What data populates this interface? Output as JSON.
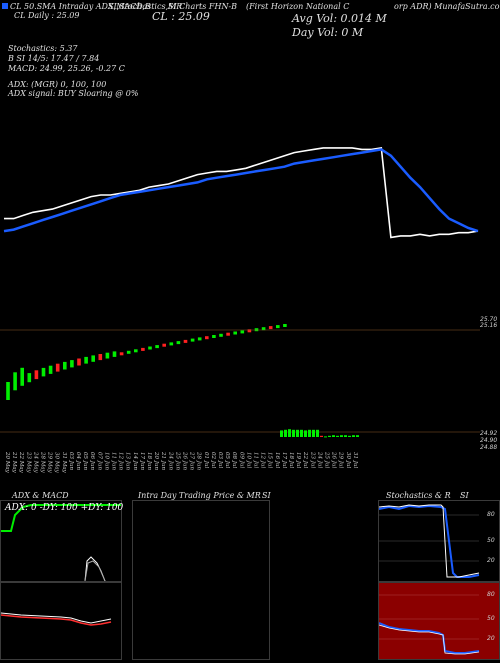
{
  "header": {
    "symbol_line": "CL 50.SMA Intraday ADX,MACD,B",
    "ticker_line": "SI,Stochastics,MR",
    "ticker_line2": "SI Charts FHN-B",
    "company_line": "(First Horizon  National C",
    "company_line2": "orp ADR) MunafaSutra.com",
    "close_label": "CL : 25.09",
    "sma_label": "CL  Daily : 25.09",
    "avg_vol": "Avg Vol: 0.014  M",
    "day_vol": "Day Vol: 0  M"
  },
  "indicators": {
    "stoch_label": "Stochastics: 5.37",
    "stoch_values": "B                SI 14/5: 17.47 / 7.84",
    "macd_label": "MACD: 24.99,  25.26,  -0.27  C",
    "adx_label": "ADX:                          (MGR) 0,  100,  100",
    "adx_signal": "ADX  signal:                        BUY Sloaring @ 0%"
  },
  "price_levels": {
    "upper_right": "25.70",
    "upper_right2": "25.16",
    "lower_right": "24.92",
    "lower_right2": "24.90",
    "lower_right3": "24.88"
  },
  "dates": [
    "20 May",
    "21 May",
    "22 May",
    "23 May",
    "24 May",
    "28 May",
    "29 May",
    "30 May",
    "31 May",
    "03 Jun",
    "04 Jun",
    "05 Jun",
    "06 Jun",
    "07 Jun",
    "10 Jun",
    "11 Jun",
    "12 Jun",
    "13 Jun",
    "14 Jun",
    "17 Jun",
    "18 Jun",
    "20 Jun",
    "21 Jun",
    "24 Jun",
    "25 Jun",
    "26 Jun",
    "27 Jun",
    "28 Jun",
    "01 Jul",
    "02 Jul",
    "03 Jul",
    "05 Jul",
    "08 Jul",
    "09 Jul",
    "10 Jul",
    "11 Jul",
    "12 Jul",
    "15 Jul",
    "16 Jul",
    "17 Jul",
    "18 Jul",
    "19 Jul",
    "22 Jul",
    "23 Jul",
    "24 Jul",
    "25 Jul",
    "26 Jul",
    "29 Jul",
    "30 Jul",
    "31 Jul"
  ],
  "panels": {
    "adx_title": "ADX  & MACD",
    "adx_legend": "ADX: 0    -DY: 100    +DY: 100",
    "intraday_title": "Intra  Day Trading Price  & MR",
    "intraday_title2": "SI",
    "stoch_title": "Stochastics  & R",
    "stoch_title2": "SI",
    "stoch_ticks": [
      "80",
      "50",
      "20"
    ],
    "rsi_ticks": [
      "80",
      "50",
      "20"
    ]
  },
  "colors": {
    "sma": "#1a5cff",
    "price": "#ffffff",
    "up": "#00ee00",
    "down": "#ff2020",
    "adx_green": "#00ee00",
    "rsi_bg": "#8b0000",
    "stoch_bg": "#000000"
  },
  "chart_data": [
    {
      "type": "line",
      "title": "",
      "series": [
        {
          "name": "price",
          "values": [
            25.0,
            25.0,
            25.02,
            25.04,
            25.05,
            25.06,
            25.08,
            25.1,
            25.12,
            25.14,
            25.15,
            25.15,
            25.16,
            25.17,
            25.18,
            25.2,
            25.21,
            25.22,
            25.24,
            25.26,
            25.28,
            25.29,
            25.3,
            25.3,
            25.31,
            25.32,
            25.34,
            25.36,
            25.38,
            25.4,
            25.42,
            25.43,
            25.44,
            25.45,
            25.45,
            25.45,
            25.45,
            25.44,
            25.44,
            25.45,
            24.88,
            24.89,
            24.89,
            24.9,
            24.89,
            24.9,
            24.9,
            24.91,
            24.91,
            24.92
          ]
        },
        {
          "name": "sma",
          "values": [
            24.92,
            24.93,
            24.95,
            24.97,
            24.99,
            25.01,
            25.03,
            25.05,
            25.07,
            25.09,
            25.11,
            25.13,
            25.15,
            25.16,
            25.17,
            25.18,
            25.19,
            25.2,
            25.21,
            25.22,
            25.23,
            25.25,
            25.26,
            25.27,
            25.28,
            25.29,
            25.3,
            25.31,
            25.32,
            25.33,
            25.35,
            25.36,
            25.37,
            25.38,
            25.39,
            25.4,
            25.41,
            25.42,
            25.43,
            25.44,
            25.4,
            25.33,
            25.26,
            25.2,
            25.13,
            25.06,
            25.0,
            24.97,
            24.94,
            24.92
          ]
        }
      ]
    },
    {
      "type": "bar",
      "title": "",
      "values": [
        -0.3,
        -0.2,
        -0.1,
        0.05,
        0.1,
        0.1,
        0.05,
        0.1,
        0.12,
        0.1,
        0.15,
        0.12,
        0.1,
        0.14,
        0.1,
        0.12,
        0.1,
        0.11,
        0.12,
        0.13,
        0.12,
        0.14,
        0.12,
        0.13,
        0.12,
        0.11,
        0.12,
        0.13,
        0.12,
        0.12,
        0.11,
        0.12,
        0.13,
        0.12,
        0.12,
        0.12,
        0.11,
        0.12,
        0.12,
        0.12,
        -0.02,
        0.01,
        0.02,
        0.03,
        0.02,
        0.03,
        0.03,
        0.02,
        0.03,
        0.03
      ]
    }
  ]
}
